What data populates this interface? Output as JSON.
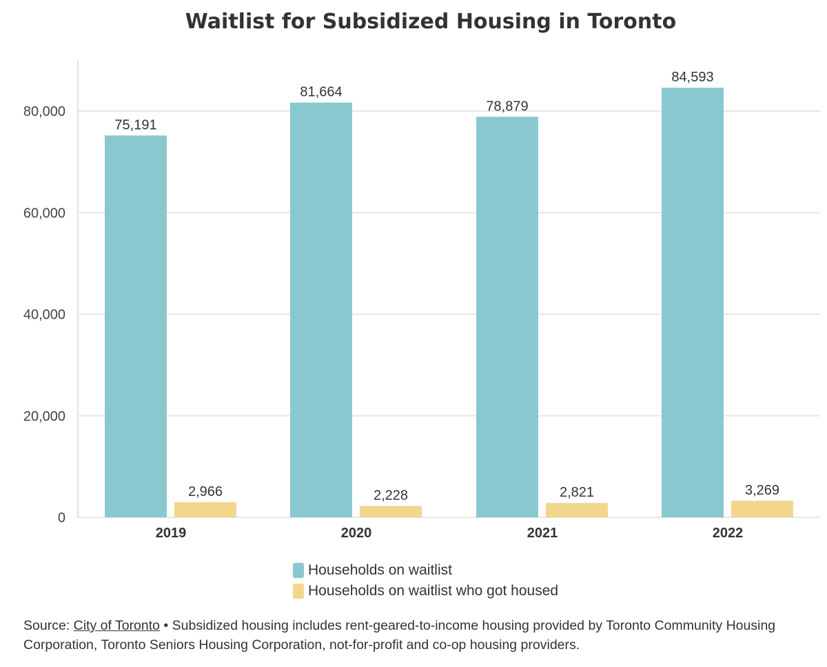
{
  "chart_data": {
    "type": "bar",
    "title": "Waitlist for Subsidized Housing in Toronto",
    "categories": [
      "2019",
      "2020",
      "2021",
      "2022"
    ],
    "series": [
      {
        "name": "Households on waitlist",
        "values": [
          75191,
          81664,
          78879,
          84593
        ],
        "labels": [
          "75,191",
          "81,664",
          "78,879",
          "84,593"
        ],
        "color": "#8ac8cf"
      },
      {
        "name": "Households on waitlist who got housed",
        "values": [
          2966,
          2228,
          2821,
          3269
        ],
        "labels": [
          "2,966",
          "2,228",
          "2,821",
          "3,269"
        ],
        "color": "#f2d68c"
      }
    ],
    "ylim": [
      0,
      90000
    ],
    "yticks": [
      0,
      20000,
      40000,
      60000,
      80000
    ],
    "ytick_labels": [
      "0",
      "20,000",
      "40,000",
      "60,000",
      "80,000"
    ],
    "grid": true,
    "legend_position": "bottom-center"
  },
  "source": {
    "prefix": "Source: ",
    "link_text": "City of Toronto",
    "note": " • Subsidized housing includes rent-geared-to-income housing provided by Toronto Community Housing Corporation, Toronto Seniors Housing Corporation, not-for-profit and co-op housing providers."
  }
}
